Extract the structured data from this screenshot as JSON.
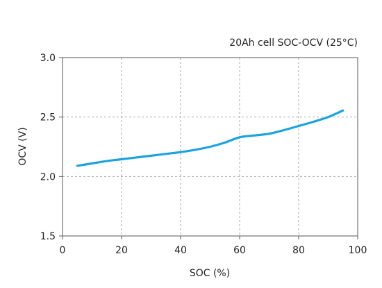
{
  "chart_data": {
    "type": "line",
    "title": "20Ah cell SOC-OCV (25°C)",
    "xlabel": "SOC (%)",
    "ylabel": "OCV (V)",
    "xlim": [
      0,
      100
    ],
    "ylim": [
      1.5,
      3.0
    ],
    "x_ticks": [
      0,
      20,
      40,
      60,
      80,
      100
    ],
    "y_ticks": [
      1.5,
      2.0,
      2.5,
      3.0
    ],
    "x_tick_labels": [
      "0",
      "20",
      "40",
      "60",
      "80",
      "100"
    ],
    "y_tick_labels": [
      "1.5",
      "2.0",
      "2.5",
      "3.0"
    ],
    "grid": true,
    "series": [
      {
        "color": "#1ba3e0",
        "x": [
          5,
          10,
          15,
          20,
          25,
          30,
          35,
          40,
          45,
          50,
          55,
          60,
          65,
          70,
          75,
          80,
          85,
          90,
          95
        ],
        "y": [
          2.09,
          2.11,
          2.13,
          2.145,
          2.16,
          2.175,
          2.19,
          2.205,
          2.225,
          2.25,
          2.285,
          2.33,
          2.345,
          2.36,
          2.39,
          2.425,
          2.46,
          2.5,
          2.555
        ]
      }
    ]
  }
}
